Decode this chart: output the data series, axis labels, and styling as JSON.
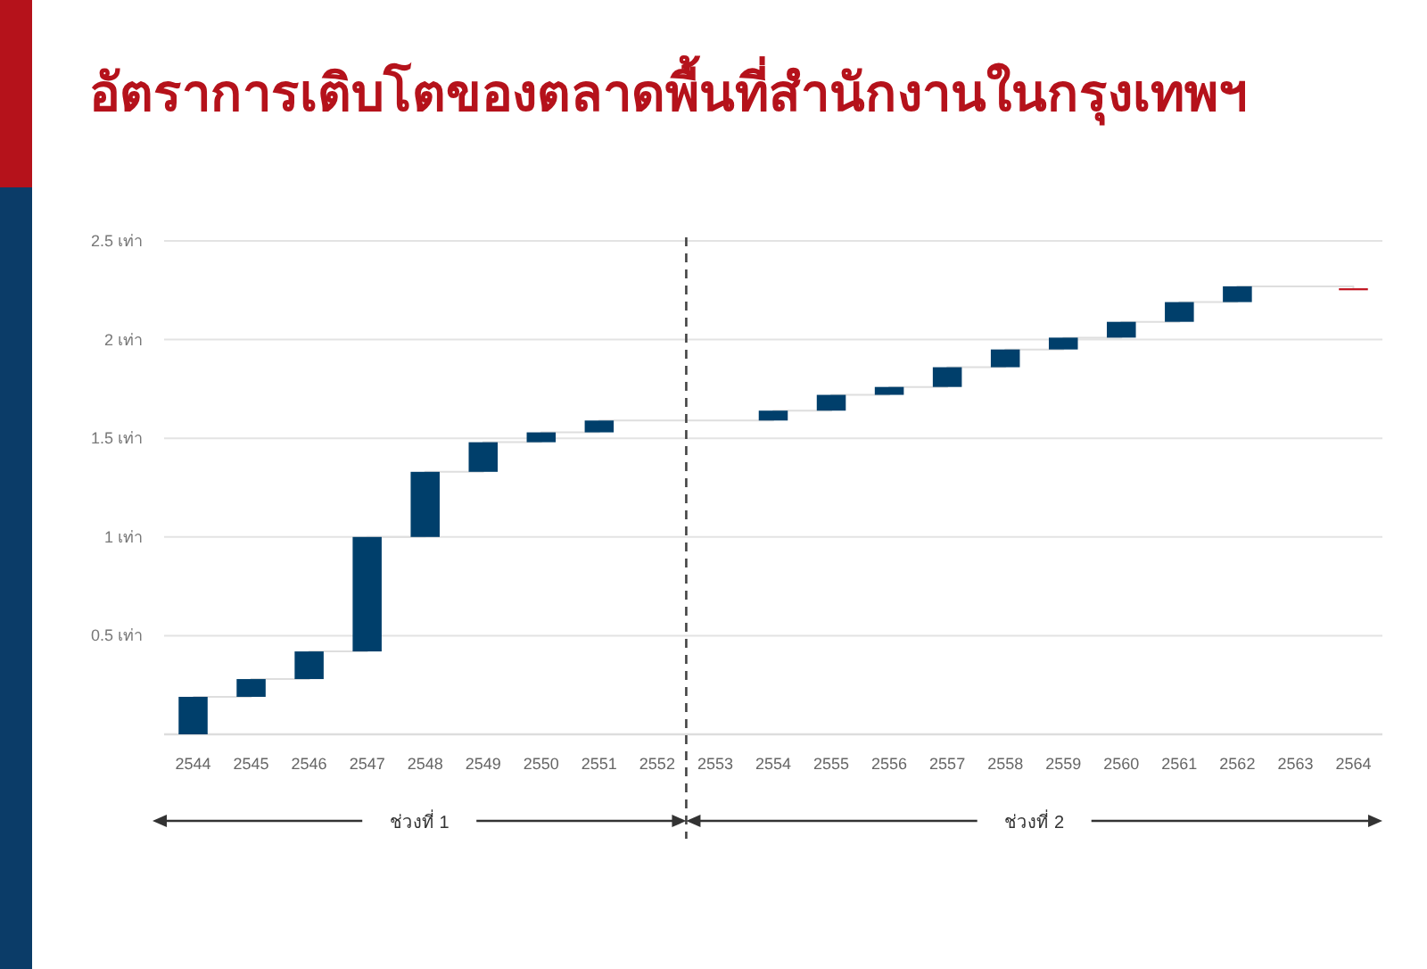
{
  "chart_data": {
    "type": "bar",
    "title": "อัตราการเติบโตของตลาดพื้นที่สำนักงานในกรุงเทพฯ",
    "x": [
      2544,
      2545,
      2546,
      2547,
      2548,
      2549,
      2550,
      2551,
      2552,
      2553,
      2554,
      2555,
      2556,
      2557,
      2558,
      2559,
      2560,
      2561,
      2562,
      2563,
      2564
    ],
    "series": [
      {
        "type": "step",
        "color": "#dedede",
        "values": [
          0.19,
          0.28,
          0.42,
          1.0,
          1.33,
          1.48,
          1.53,
          1.59,
          1.59,
          1.59,
          1.64,
          1.72,
          1.76,
          1.86,
          1.95,
          2.01,
          2.09,
          2.19,
          2.27,
          2.27,
          2.26
        ]
      },
      {
        "values": [
          0.19,
          0.09,
          0.14,
          0.58,
          0.33,
          0.15,
          0.05,
          0.06,
          null,
          null,
          0.05,
          0.08,
          0.04,
          0.1,
          0.09,
          0.06,
          0.08,
          0.1,
          0.08,
          null,
          0.01
        ],
        "base": [
          0,
          0.19,
          0.28,
          0.42,
          1.0,
          1.33,
          1.48,
          1.53,
          null,
          null,
          1.59,
          1.64,
          1.72,
          1.76,
          1.86,
          1.95,
          2.01,
          2.09,
          2.19,
          null,
          2.25
        ],
        "colors": [
          "#003f6b",
          "#003f6b",
          "#003f6b",
          "#003f6b",
          "#003f6b",
          "#003f6b",
          "#003f6b",
          "#003f6b",
          null,
          null,
          "#003f6b",
          "#003f6b",
          "#003f6b",
          "#003f6b",
          "#003f6b",
          "#003f6b",
          "#003f6b",
          "#003f6b",
          "#003f6b",
          null,
          "#c0131f"
        ]
      }
    ],
    "xlim": [
      2543.5,
      2564.5
    ],
    "xticks": [
      2544,
      2545,
      2546,
      2547,
      2548,
      2549,
      2550,
      2551,
      2552,
      2553,
      2554,
      2555,
      2556,
      2557,
      2558,
      2559,
      2560,
      2561,
      2562,
      2563,
      2564
    ],
    "ylim": [
      0,
      2.5
    ],
    "yticks": [
      {
        "value": 0,
        "label": null
      },
      {
        "value": 0.5,
        "label": "0.5 เท่า"
      },
      {
        "value": 1,
        "label": "1 เท่า"
      },
      {
        "value": 1.5,
        "label": "1.5 เท่า"
      },
      {
        "value": 2,
        "label": "2 เท่า"
      },
      {
        "value": 2.5,
        "label": "2.5 เท่า"
      }
    ],
    "grid": "y",
    "ref_lines": [
      {
        "axis": "x",
        "value": 2552.5,
        "line_style": "dashed",
        "color": "#444444"
      }
    ],
    "annotations": [
      "ช่วงที่ 1",
      "ช่วงที่ 2"
    ]
  }
}
